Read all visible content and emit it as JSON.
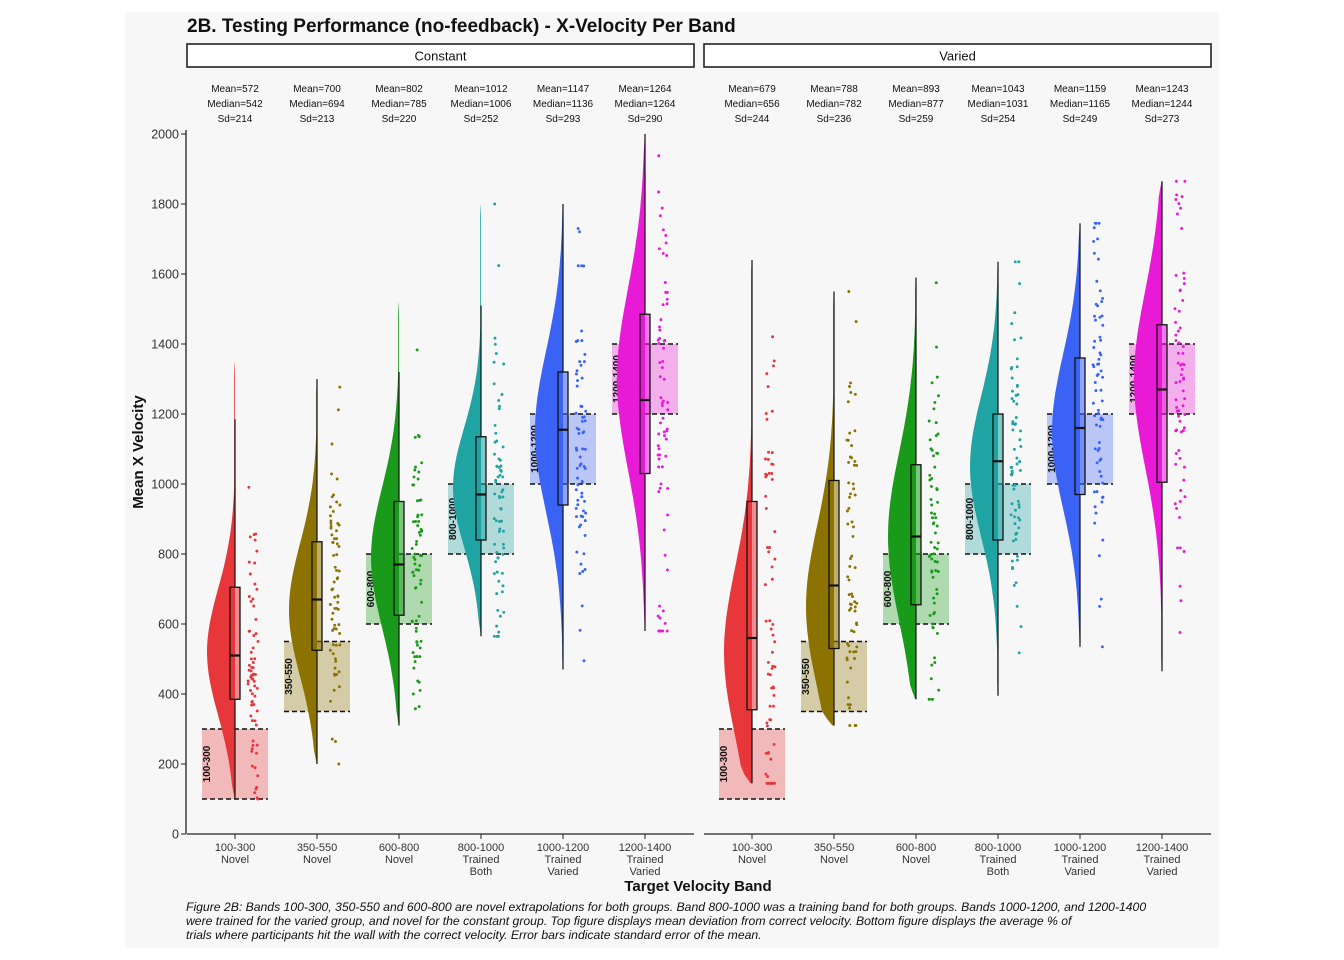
{
  "title": "2B. Testing Performance (no-feedback) - X-Velocity Per Band",
  "caption": [
    "Figure 2B: Bands 100-300, 350-550 and 600-800 are novel extrapolations for both groups. Band 800-1000 was a training band for both groups. Bands 1000-1200, and 1200-1400",
    "were trained for the varied group, and novel for the constant group. Top figure displays mean deviation from correct velocity. Bottom figure displays the average % of",
    "trials where participants hit the wall with the correct velocity. Error bars indicate standard error of the mean."
  ],
  "chart_data": {
    "type": "raincloud",
    "title": "2B. Testing Performance (no-feedback) - X-Velocity Per Band",
    "xlabel": "Target Velocity Band",
    "ylabel": "Mean X Velocity",
    "ylim": [
      0,
      2000
    ],
    "yticks": [
      0,
      200,
      400,
      600,
      800,
      1000,
      1200,
      1400,
      1600,
      1800,
      2000
    ],
    "categories": [
      {
        "label": "100-300",
        "sub": [
          "Novel"
        ]
      },
      {
        "label": "350-550",
        "sub": [
          "Novel"
        ]
      },
      {
        "label": "600-800",
        "sub": [
          "Novel"
        ]
      },
      {
        "label": "800-1000",
        "sub": [
          "Trained",
          "Both"
        ]
      },
      {
        "label": "1000-1200",
        "sub": [
          "Trained",
          "Varied"
        ]
      },
      {
        "label": "1200-1400",
        "sub": [
          "Trained",
          "Varied"
        ]
      }
    ],
    "colors": [
      "#e8373b",
      "#8c7200",
      "#1a9a1a",
      "#1fa3a3",
      "#3a63f5",
      "#e81ad6"
    ],
    "bands": [
      {
        "label": "100-300",
        "low": 100,
        "high": 300
      },
      {
        "label": "350-550",
        "low": 350,
        "high": 550
      },
      {
        "label": "600-800",
        "low": 600,
        "high": 800
      },
      {
        "label": "800-1000",
        "low": 800,
        "high": 1000
      },
      {
        "label": "1000-1200",
        "low": 1000,
        "high": 1200
      },
      {
        "label": "1200-1400",
        "low": 1200,
        "high": 1400
      }
    ],
    "panels": [
      {
        "name": "Constant",
        "stats": [
          {
            "mean": "Mean=572",
            "median": "Median=542",
            "sd": "Sd=214"
          },
          {
            "mean": "Mean=700",
            "median": "Median=694",
            "sd": "Sd=213"
          },
          {
            "mean": "Mean=802",
            "median": "Median=785",
            "sd": "Sd=220"
          },
          {
            "mean": "Mean=1012",
            "median": "Median=1006",
            "sd": "Sd=252"
          },
          {
            "mean": "Mean=1147",
            "median": "Median=1136",
            "sd": "Sd=293"
          },
          {
            "mean": "Mean=1264",
            "median": "Median=1264",
            "sd": "Sd=290"
          }
        ],
        "boxes": [
          {
            "min": 100,
            "q1": 385,
            "median": 510,
            "q3": 705,
            "max": 1185,
            "violin_min": 100,
            "violin_max": 1350,
            "mode": 520,
            "spread": 180
          },
          {
            "min": 200,
            "q1": 525,
            "median": 670,
            "q3": 835,
            "max": 1300,
            "violin_min": 200,
            "violin_max": 1300,
            "mode": 640,
            "spread": 190
          },
          {
            "min": 310,
            "q1": 625,
            "median": 770,
            "q3": 950,
            "max": 1320,
            "violin_min": 310,
            "violin_max": 1520,
            "mode": 790,
            "spread": 200
          },
          {
            "min": 565,
            "q1": 840,
            "median": 970,
            "q3": 1135,
            "max": 1510,
            "violin_min": 565,
            "violin_max": 1800,
            "mode": 990,
            "spread": 170
          },
          {
            "min": 470,
            "q1": 940,
            "median": 1155,
            "q3": 1320,
            "max": 1800,
            "violin_min": 470,
            "violin_max": 1800,
            "mode": 1150,
            "spread": 230
          },
          {
            "min": 580,
            "q1": 1030,
            "median": 1240,
            "q3": 1485,
            "max": 2000,
            "violin_min": 580,
            "violin_max": 2000,
            "mode": 1300,
            "spread": 260
          }
        ]
      },
      {
        "name": "Varied",
        "stats": [
          {
            "mean": "Mean=679",
            "median": "Median=656",
            "sd": "Sd=244"
          },
          {
            "mean": "Mean=788",
            "median": "Median=782",
            "sd": "Sd=236"
          },
          {
            "mean": "Mean=893",
            "median": "Median=877",
            "sd": "Sd=259"
          },
          {
            "mean": "Mean=1043",
            "median": "Median=1031",
            "sd": "Sd=254"
          },
          {
            "mean": "Mean=1159",
            "median": "Median=1165",
            "sd": "Sd=249"
          },
          {
            "mean": "Mean=1243",
            "median": "Median=1244",
            "sd": "Sd=273"
          }
        ],
        "boxes": [
          {
            "min": 145,
            "q1": 355,
            "median": 560,
            "q3": 950,
            "max": 1640,
            "violin_min": 145,
            "violin_max": 1640,
            "mode": 520,
            "spread": 240
          },
          {
            "min": 310,
            "q1": 530,
            "median": 710,
            "q3": 1010,
            "max": 1550,
            "violin_min": 310,
            "violin_max": 1550,
            "mode": 650,
            "spread": 230
          },
          {
            "min": 385,
            "q1": 655,
            "median": 850,
            "q3": 1055,
            "max": 1590,
            "violin_min": 385,
            "violin_max": 1590,
            "mode": 850,
            "spread": 240
          },
          {
            "min": 395,
            "q1": 840,
            "median": 1065,
            "q3": 1200,
            "max": 1635,
            "violin_min": 395,
            "violin_max": 1635,
            "mode": 1050,
            "spread": 200
          },
          {
            "min": 535,
            "q1": 970,
            "median": 1160,
            "q3": 1360,
            "max": 1745,
            "violin_min": 535,
            "violin_max": 1745,
            "mode": 1150,
            "spread": 220
          },
          {
            "min": 465,
            "q1": 1005,
            "median": 1270,
            "q3": 1455,
            "max": 1865,
            "violin_min": 465,
            "violin_max": 1865,
            "mode": 1300,
            "spread": 250
          }
        ]
      }
    ],
    "grid": false,
    "legend": "none"
  }
}
